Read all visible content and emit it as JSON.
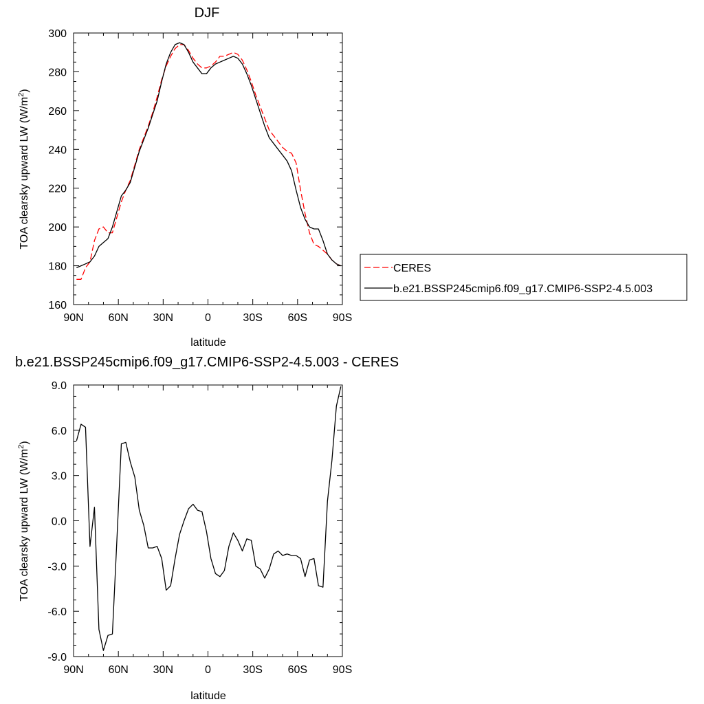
{
  "chart_data": [
    {
      "type": "line",
      "title": "DJF",
      "xlabel": "latitude",
      "ylabel": "TOA clearsky upward LW (W/m",
      "ylabel_sup": "2",
      "ylabel_close": ")",
      "xlim": [
        90,
        -90
      ],
      "ylim": [
        160,
        300
      ],
      "xticks": [
        90,
        60,
        30,
        0,
        -30,
        -60,
        -90
      ],
      "xtick_labels": [
        "90N",
        "60N",
        "30N",
        "0",
        "30S",
        "60S",
        "90S"
      ],
      "yticks": [
        160,
        180,
        200,
        220,
        240,
        260,
        280,
        300
      ],
      "ytick_labels": [
        "160",
        "180",
        "200",
        "220",
        "240",
        "260",
        "280",
        "300"
      ],
      "legend_position": "right",
      "series": [
        {
          "name": "CERES",
          "color": "#ff0000",
          "style": "dashed",
          "x": [
            88,
            85,
            82,
            79,
            76,
            73,
            70,
            67,
            64,
            61,
            58,
            55,
            52,
            49,
            46,
            43,
            40,
            37,
            34,
            31,
            28,
            25,
            22,
            19,
            16,
            13,
            10,
            7,
            4,
            1,
            -2,
            -5,
            -8,
            -11,
            -14,
            -17,
            -20,
            -23,
            -26,
            -29,
            -32,
            -35,
            -38,
            -41,
            -44,
            -47,
            -50,
            -53,
            -56,
            -59,
            -62,
            -65,
            -68,
            -71,
            -74,
            -77,
            -80,
            -83,
            -86,
            -89
          ],
          "y": [
            173,
            173,
            179,
            182,
            193,
            199,
            200,
            197,
            197,
            205,
            213,
            219,
            224,
            232,
            240,
            246,
            252,
            259,
            267,
            276,
            283,
            288,
            292,
            294,
            294,
            291,
            287,
            284,
            282,
            282,
            283,
            285,
            288,
            288,
            289,
            290,
            289,
            286,
            281,
            275,
            268,
            262,
            256,
            250,
            247,
            244,
            241,
            239,
            238,
            233,
            219,
            207,
            197,
            191,
            190,
            188,
            186,
            183,
            181,
            180
          ]
        },
        {
          "name": "b.e21.BSSP245cmip6.f09_g17.CMIP6-SSP2-4.5.003",
          "color": "#000000",
          "style": "solid",
          "x": [
            88,
            85,
            82,
            79,
            76,
            73,
            70,
            67,
            64,
            61,
            58,
            55,
            52,
            49,
            46,
            43,
            40,
            37,
            34,
            31,
            28,
            25,
            22,
            19,
            16,
            13,
            10,
            7,
            4,
            1,
            -2,
            -5,
            -8,
            -11,
            -14,
            -17,
            -20,
            -23,
            -26,
            -29,
            -32,
            -35,
            -38,
            -41,
            -44,
            -47,
            -50,
            -53,
            -56,
            -59,
            -62,
            -65,
            -68,
            -71,
            -74,
            -77,
            -80,
            -83,
            -86,
            -89
          ],
          "y": [
            179,
            180,
            181,
            182,
            185,
            190,
            192,
            194,
            200,
            208,
            216,
            219,
            223,
            231,
            239,
            245,
            251,
            258,
            265,
            275,
            284,
            290,
            294,
            295,
            294,
            290,
            285,
            282,
            279,
            279,
            282,
            284,
            285,
            286,
            287,
            288,
            287,
            284,
            279,
            273,
            266,
            259,
            252,
            246,
            243,
            240,
            237,
            234,
            229,
            219,
            210,
            204,
            200,
            199,
            199,
            193,
            186,
            183,
            181,
            180
          ]
        }
      ]
    },
    {
      "type": "line",
      "title": "b.e21.BSSP245cmip6.f09_g17.CMIP6-SSP2-4.5.003 - CERES",
      "xlabel": "latitude",
      "ylabel": "TOA clearsky upward LW (W/m",
      "ylabel_sup": "2",
      "ylabel_close": ")",
      "xlim": [
        90,
        -90
      ],
      "ylim": [
        -9,
        9
      ],
      "xticks": [
        90,
        60,
        30,
        0,
        -30,
        -60,
        -90
      ],
      "xtick_labels": [
        "90N",
        "60N",
        "30N",
        "0",
        "30S",
        "60S",
        "90S"
      ],
      "yticks": [
        -9,
        -6,
        -3,
        0,
        3,
        6,
        9
      ],
      "ytick_labels": [
        "-9.0",
        "-6.0",
        "-3.0",
        "0.0",
        "3.0",
        "6.0",
        "9.0"
      ],
      "series": [
        {
          "color": "#000000",
          "style": "solid",
          "x": [
            88,
            85,
            82,
            79,
            76,
            73,
            70,
            67,
            64,
            61,
            58,
            55,
            52,
            49,
            46,
            43,
            40,
            37,
            34,
            31,
            28,
            25,
            22,
            19,
            16,
            13,
            10,
            7,
            4,
            1,
            -2,
            -5,
            -8,
            -11,
            -14,
            -17,
            -20,
            -23,
            -26,
            -29,
            -32,
            -35,
            -38,
            -41,
            -44,
            -47,
            -50,
            -53,
            -56,
            -59,
            -62,
            -65,
            -68,
            -71,
            -74,
            -77,
            -80,
            -83,
            -86,
            -89
          ],
          "y": [
            5.3,
            6.4,
            6.2,
            -1.7,
            0.9,
            -7.2,
            -8.6,
            -7.6,
            -7.5,
            -1.3,
            5.1,
            5.2,
            3.9,
            2.9,
            0.7,
            -0.3,
            -1.8,
            -1.8,
            -1.7,
            -2.5,
            -4.6,
            -4.3,
            -2.5,
            -0.9,
            0.0,
            0.8,
            1.1,
            0.7,
            0.6,
            -0.7,
            -2.5,
            -3.5,
            -3.7,
            -3.3,
            -1.7,
            -0.8,
            -1.3,
            -2.0,
            -1.2,
            -1.3,
            -3.0,
            -3.2,
            -3.8,
            -3.2,
            -2.2,
            -2.0,
            -2.3,
            -2.2,
            -2.3,
            -2.3,
            -2.5,
            -3.7,
            -2.6,
            -2.5,
            -4.3,
            -4.4,
            1.3,
            4.0,
            7.6,
            8.9
          ]
        }
      ]
    }
  ]
}
